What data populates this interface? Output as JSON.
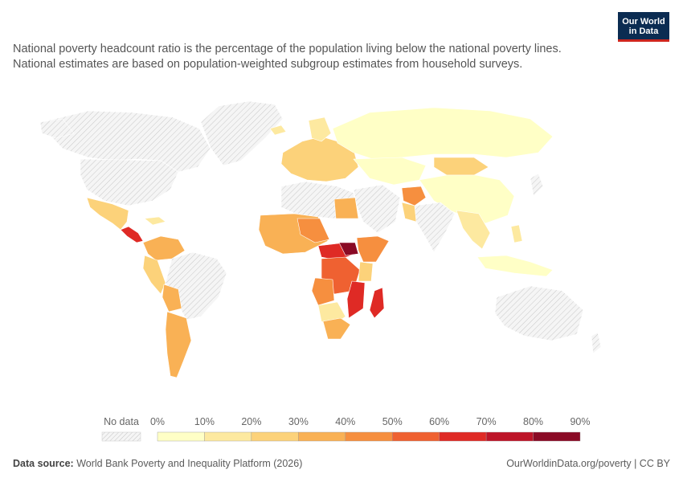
{
  "header": {
    "subtitle_line1": "National poverty headcount ratio is the percentage of the population living below the national poverty lines.",
    "subtitle_line2": "National estimates are based on population-weighted subgroup estimates from household surveys.",
    "logo_line1": "Our World",
    "logo_line2": "in Data"
  },
  "legend": {
    "no_data_label": "No data",
    "bins": [
      {
        "label": "0%",
        "color": "#ffffc6"
      },
      {
        "label": "10%",
        "color": "#fde9a0"
      },
      {
        "label": "20%",
        "color": "#fcd27a"
      },
      {
        "label": "30%",
        "color": "#f9b155"
      },
      {
        "label": "40%",
        "color": "#f68f3f"
      },
      {
        "label": "50%",
        "color": "#ef6131"
      },
      {
        "label": "60%",
        "color": "#df2a25"
      },
      {
        "label": "70%",
        "color": "#bd1428"
      },
      {
        "label": "80%",
        "color": "#8a0a25"
      }
    ],
    "last_label": "90%"
  },
  "footer": {
    "source_label": "Data source:",
    "source_text": "World Bank Poverty and Inequality Platform (2026)",
    "link_text": "OurWorldinData.org/poverty | CC BY"
  }
}
